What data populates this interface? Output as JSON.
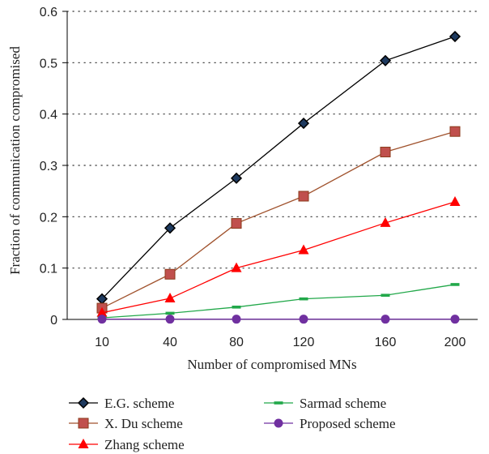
{
  "chart_data": {
    "type": "line",
    "title": "",
    "xlabel": "Number of compromised MNs",
    "ylabel": "Fraction of communication compromised",
    "categories": [
      "10",
      "40",
      "80",
      "120",
      "160",
      "200"
    ],
    "ylim": [
      0,
      0.6
    ],
    "yticks": [
      "0",
      "0.1",
      "0.2",
      "0.3",
      "0.4",
      "0.5",
      "0.6"
    ],
    "grid": "horizontal dotted",
    "legend_position": "bottom",
    "series": [
      {
        "name": "E.G. scheme",
        "values": [
          0.04,
          0.178,
          0.275,
          0.382,
          0.504,
          0.551
        ],
        "color": "#000000",
        "marker": "diamond",
        "fill": "#1e3a5f"
      },
      {
        "name": "X. Du scheme",
        "values": [
          0.022,
          0.088,
          0.187,
          0.24,
          0.326,
          0.366
        ],
        "color": "#a0522d",
        "marker": "square",
        "fill": "#c0504d"
      },
      {
        "name": "Zhang scheme",
        "values": [
          0.013,
          0.041,
          0.1,
          0.135,
          0.188,
          0.229
        ],
        "color": "#ff0000",
        "marker": "triangle",
        "fill": "#ff0000"
      },
      {
        "name": "Sarmad scheme",
        "values": [
          0.003,
          0.012,
          0.024,
          0.04,
          0.047,
          0.068
        ],
        "color": "#22a84a",
        "marker": "dash",
        "fill": "#22a84a"
      },
      {
        "name": "Proposed scheme",
        "values": [
          0.0005,
          0.0005,
          0.0005,
          0.0005,
          0.0005,
          0.0005
        ],
        "color": "#7030a0",
        "marker": "circle",
        "fill": "#7030a0"
      }
    ]
  }
}
